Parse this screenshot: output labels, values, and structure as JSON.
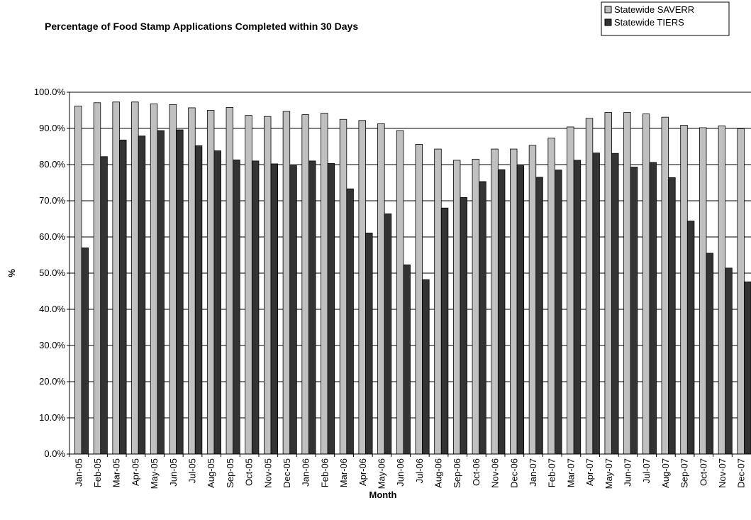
{
  "chart_data": {
    "type": "bar",
    "title": "Percentage of Food Stamp Applications Completed within 30 Days",
    "x_label": "Month",
    "y_label": "%",
    "categories": [
      "Jan-05",
      "Feb-05",
      "Mar-05",
      "Apr-05",
      "May-05",
      "Jun-05",
      "Jul-05",
      "Aug-05",
      "Sep-05",
      "Oct-05",
      "Nov-05",
      "Dec-05",
      "Jan-06",
      "Feb-06",
      "Mar-06",
      "Apr-06",
      "May-06",
      "Jun-06",
      "Jul-06",
      "Aug-06",
      "Sep-06",
      "Oct-06",
      "Nov-06",
      "Dec-06",
      "Jan-07",
      "Feb-07",
      "Mar-07",
      "Apr-07",
      "May-07",
      "Jun-07",
      "Jul-07",
      "Aug-07",
      "Sep-07",
      "Oct-07",
      "Nov-07",
      "Dec-07"
    ],
    "series": [
      {
        "name": "Statewide SAVERR",
        "color": "#c0c0c0",
        "values": [
          96.2,
          97.1,
          97.3,
          97.3,
          96.8,
          96.6,
          95.7,
          95.0,
          95.8,
          93.6,
          93.3,
          94.7,
          93.8,
          94.2,
          92.5,
          92.2,
          91.3,
          89.4,
          85.6,
          84.3,
          81.2,
          81.5,
          84.3,
          84.3,
          85.3,
          87.3,
          90.4,
          92.8,
          94.4,
          94.4,
          94.0,
          93.1,
          90.9,
          90.2,
          90.7,
          89.9
        ]
      },
      {
        "name": "Statewide TIERS",
        "color": "#333333",
        "values": [
          57.0,
          82.2,
          86.8,
          87.9,
          89.4,
          89.6,
          85.2,
          83.8,
          81.3,
          81.0,
          80.2,
          79.7,
          81.0,
          80.3,
          73.3,
          61.1,
          66.4,
          52.3,
          48.2,
          68.0,
          70.9,
          75.3,
          78.6,
          79.7,
          76.5,
          78.5,
          81.2,
          83.2,
          83.1,
          79.3,
          80.6,
          76.4,
          64.4,
          55.5,
          51.4,
          47.6
        ]
      }
    ],
    "ylim": [
      0,
      100
    ],
    "yticks": [
      {
        "value": 0,
        "label": "0.0%"
      },
      {
        "value": 10,
        "label": "10.0%"
      },
      {
        "value": 20,
        "label": "20.0%"
      },
      {
        "value": 30,
        "label": "30.0%"
      },
      {
        "value": 40,
        "label": "40.0%"
      },
      {
        "value": 50,
        "label": "50.0%"
      },
      {
        "value": 60,
        "label": "60.0%"
      },
      {
        "value": 70,
        "label": "70.0%"
      },
      {
        "value": 80,
        "label": "80.0%"
      },
      {
        "value": 90,
        "label": "90.0%"
      },
      {
        "value": 100,
        "label": "100.0%"
      }
    ],
    "grid": true,
    "legend": "top-right"
  }
}
